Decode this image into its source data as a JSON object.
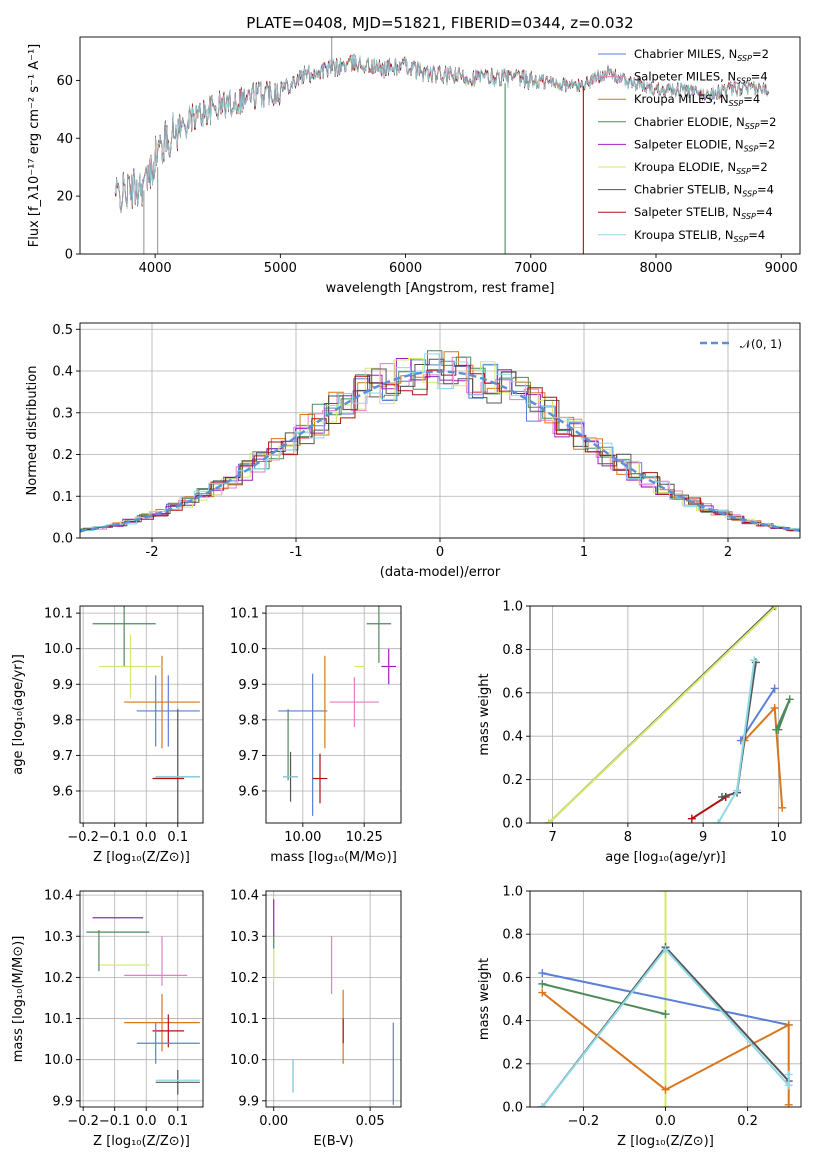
{
  "colors": {
    "Chabrier MILES": "#5a7fd6",
    "Salpeter MILES": "#e87cc8",
    "Kroupa MILES": "#d9751a",
    "Chabrier ELODIE": "#4e8a5c",
    "Salpeter ELODIE": "#a020c0",
    "Kroupa ELODIE": "#d6e86a",
    "Chabrier STELIB": "#555555",
    "Salpeter STELIB": "#b01010",
    "Kroupa STELIB": "#8ed8e8",
    "normal_curve": "#5b8fd6"
  },
  "chart_data": [
    {
      "id": "spectrum",
      "type": "line",
      "title": "PLATE=0408, MJD=51821, FIBERID=0344, z=0.032",
      "xlabel": "wavelength [Angstrom, rest frame]",
      "ylabel": "Flux [f_λ10⁻¹⁷ erg cm⁻² s⁻¹ A⁻¹]",
      "xlim": [
        3400,
        9150
      ],
      "ylim": [
        0,
        75
      ],
      "xticks": [
        4000,
        5000,
        6000,
        7000,
        8000,
        9000
      ],
      "yticks": [
        0,
        20,
        40,
        60
      ],
      "grid": false,
      "legend_position": "top-right",
      "series": [
        {
          "name": "Chabrier MILES, N_SSP=2",
          "legend_label": "Chabrier MILES, N",
          "legend_sub": "SSP",
          "legend_tail": "=2",
          "color_key": "Chabrier MILES"
        },
        {
          "name": "Salpeter MILES, N_SSP=4",
          "legend_label": "Salpeter MILES, N",
          "legend_sub": "SSP",
          "legend_tail": "=4",
          "color_key": "Salpeter MILES"
        },
        {
          "name": "Kroupa MILES, N_SSP=4",
          "legend_label": "Kroupa MILES, N",
          "legend_sub": "SSP",
          "legend_tail": "=4",
          "color_key": "Kroupa MILES"
        },
        {
          "name": "Chabrier ELODIE, N_SSP=2",
          "legend_label": "Chabrier ELODIE, N",
          "legend_sub": "SSP",
          "legend_tail": "=2",
          "color_key": "Chabrier ELODIE"
        },
        {
          "name": "Salpeter ELODIE, N_SSP=2",
          "legend_label": "Salpeter ELODIE, N",
          "legend_sub": "SSP",
          "legend_tail": "=2",
          "color_key": "Salpeter ELODIE"
        },
        {
          "name": "Kroupa ELODIE, N_SSP=2",
          "legend_label": "Kroupa ELODIE, N",
          "legend_sub": "SSP",
          "legend_tail": "=2",
          "color_key": "Kroupa ELODIE"
        },
        {
          "name": "Chabrier STELIB, N_SSP=4",
          "legend_label": "Chabrier STELIB, N",
          "legend_sub": "SSP",
          "legend_tail": "=4",
          "color_key": "Chabrier STELIB"
        },
        {
          "name": "Salpeter STELIB, N_SSP=4",
          "legend_label": "Salpeter STELIB, N",
          "legend_sub": "SSP",
          "legend_tail": "=4",
          "color_key": "Salpeter STELIB"
        },
        {
          "name": "Kroupa STELIB, N_SSP=4",
          "legend_label": "Kroupa STELIB, N",
          "legend_sub": "SSP",
          "legend_tail": "=4",
          "color_key": "Kroupa STELIB"
        }
      ],
      "continuum": {
        "x": [
          3680,
          3800,
          3900,
          3950,
          4000,
          4100,
          4300,
          4500,
          4800,
          5000,
          5200,
          5400,
          5600,
          5800,
          6000,
          6200,
          6500,
          6800,
          7000,
          7200,
          7400,
          7600,
          7800,
          8000,
          8200,
          8400,
          8600,
          8800,
          8900
        ],
        "y": [
          20,
          22,
          24,
          26,
          34,
          40,
          47,
          51,
          55,
          57,
          62,
          64,
          66,
          64,
          65,
          62,
          61,
          61,
          60,
          59,
          58,
          63,
          59,
          57,
          57,
          55,
          57,
          57,
          57
        ]
      },
      "dropouts": [
        {
          "x": 3910,
          "ymin": 0,
          "ymax": 22
        },
        {
          "x": 4020,
          "ymin": 0,
          "ymax": 30
        },
        {
          "x": 6795,
          "ymin": 0,
          "ymax": 59
        },
        {
          "x": 7420,
          "ymin": 0,
          "ymax": 58
        },
        {
          "x": 5410,
          "ymin": 64,
          "ymax": 76
        }
      ]
    },
    {
      "id": "residuals",
      "type": "line",
      "xlabel": "(data-model)/error",
      "ylabel": "Normed distribution",
      "xlim": [
        -2.5,
        2.5
      ],
      "ylim": [
        0,
        0.515
      ],
      "xticks": [
        -2,
        -1,
        0,
        1,
        2
      ],
      "yticks": [
        0.0,
        0.1,
        0.2,
        0.3,
        0.4,
        0.5
      ],
      "grid": true,
      "legend_position": "top-right",
      "legend_label": "𝒩(0, 1)",
      "bin_width": 0.1,
      "histogram_center_jitter_seed": 7
    },
    {
      "id": "age_vs_Z",
      "type": "scatter",
      "xlabel": "Z [log₁₀(Z/Z⊙)]",
      "ylabel": "age  [log₁₀(age/yr)]",
      "xlim": [
        -0.21,
        0.18
      ],
      "ylim": [
        9.51,
        10.12
      ],
      "xticks": [
        -0.2,
        -0.1,
        0.0,
        0.1
      ],
      "xtick_labels": [
        "−0.2",
        "−0.1",
        "0.0",
        "0.1"
      ],
      "yticks": [
        9.6,
        9.7,
        9.8,
        9.9,
        10.0,
        10.1
      ],
      "grid": true,
      "points": [
        {
          "color_key": "Chabrier MILES",
          "x": 0.07,
          "y": 9.825,
          "xerr": 0.1,
          "yerr": 0.1
        },
        {
          "color_key": "Chabrier MILES",
          "x": 0.03,
          "y": 9.825,
          "xerr": 0.0,
          "yerr": 0.1
        },
        {
          "color_key": "Kroupa MILES",
          "x": 0.05,
          "y": 9.85,
          "xerr": 0.12,
          "yerr": 0.13
        },
        {
          "color_key": "Chabrier ELODIE",
          "x": -0.07,
          "y": 10.07,
          "xerr": 0.1,
          "yerr": 0.12
        },
        {
          "color_key": "Kroupa ELODIE",
          "x": -0.05,
          "y": 9.95,
          "xerr": 0.1,
          "yerr": 0.09
        },
        {
          "color_key": "Chabrier STELIB",
          "x": 0.1,
          "y": 9.64,
          "xerr": 0.07,
          "yerr": 0.19
        },
        {
          "color_key": "Salpeter STELIB",
          "x": 0.07,
          "y": 9.635,
          "xerr": 0.05,
          "yerr": 0.0
        },
        {
          "color_key": "Kroupa STELIB",
          "x": 0.1,
          "y": 9.64,
          "xerr": 0.07,
          "yerr": 0.0
        }
      ]
    },
    {
      "id": "age_vs_mass",
      "type": "scatter",
      "xlabel": "mass [log₁₀(M/M⊙)]",
      "xlim": [
        9.85,
        10.4
      ],
      "ylim": [
        9.51,
        10.12
      ],
      "xticks": [
        10.0,
        10.25
      ],
      "xtick_labels": [
        "10.00",
        "10.25"
      ],
      "yticks": [
        9.6,
        9.7,
        9.8,
        9.9,
        10.0,
        10.1
      ],
      "grid": true,
      "points": [
        {
          "color_key": "Chabrier MILES",
          "x": 10.0,
          "y": 9.825,
          "xerr": 0.1,
          "yerr": 0.0
        },
        {
          "color_key": "Chabrier MILES",
          "x": 10.04,
          "y": 9.73,
          "xerr": 0.0,
          "yerr": 0.2
        },
        {
          "color_key": "Salpeter MILES",
          "x": 10.21,
          "y": 9.85,
          "xerr": 0.1,
          "yerr": 0.07
        },
        {
          "color_key": "Kroupa MILES",
          "x": 10.09,
          "y": 9.85,
          "xerr": 0.0,
          "yerr": 0.13
        },
        {
          "color_key": "Chabrier ELODIE",
          "x": 10.31,
          "y": 10.07,
          "xerr": 0.05,
          "yerr": 0.11
        },
        {
          "color_key": "Salpeter ELODIE",
          "x": 10.35,
          "y": 9.95,
          "xerr": 0.03,
          "yerr": 0.05
        },
        {
          "color_key": "Kroupa ELODIE",
          "x": 10.23,
          "y": 9.95,
          "xerr": 0.02,
          "yerr": 0.0
        },
        {
          "color_key": "Chabrier STELIB",
          "x": 9.95,
          "y": 9.64,
          "xerr": 0.03,
          "yerr": 0.07
        },
        {
          "color_key": "Chabrier ELODIE",
          "x": 9.94,
          "y": 9.73,
          "xerr": 0.0,
          "yerr": 0.1
        },
        {
          "color_key": "Salpeter STELIB",
          "x": 10.07,
          "y": 9.635,
          "xerr": 0.03,
          "yerr": 0.07
        },
        {
          "color_key": "Kroupa STELIB",
          "x": 9.95,
          "y": 9.64,
          "xerr": 0.03,
          "yerr": 0.0
        }
      ]
    },
    {
      "id": "mass_weight_vs_age",
      "type": "line",
      "xlabel": "age  [log₁₀(age/yr)]",
      "ylabel": "mass weight",
      "xlim": [
        6.7,
        10.3
      ],
      "ylim": [
        0.0,
        1.0
      ],
      "xticks": [
        7,
        8,
        9,
        10
      ],
      "yticks": [
        0.0,
        0.2,
        0.4,
        0.6,
        0.8,
        1.0
      ],
      "grid": true,
      "series": [
        {
          "color_key": "Chabrier STELIB",
          "x": [
            6.95,
            9.95
          ],
          "y": [
            0.0,
            1.0
          ]
        },
        {
          "color_key": "Kroupa ELODIE",
          "x": [
            6.95,
            9.97
          ],
          "y": [
            0.0,
            1.0
          ]
        },
        {
          "color_key": "Salpeter STELIB",
          "x": [
            8.85,
            9.3
          ],
          "y": [
            0.02,
            0.12
          ]
        },
        {
          "color_key": "Chabrier MILES",
          "x": [
            9.5,
            9.95
          ],
          "y": [
            0.38,
            0.62
          ]
        },
        {
          "color_key": "Kroupa MILES",
          "x": [
            9.55,
            9.95,
            10.05
          ],
          "y": [
            0.38,
            0.53,
            0.07
          ]
        },
        {
          "color_key": "Chabrier ELODIE",
          "x": [
            9.97,
            10.15,
            10.0
          ],
          "y": [
            0.43,
            0.57,
            0.43
          ]
        },
        {
          "color_key": "Chabrier STELIB",
          "x": [
            9.25,
            9.45,
            9.7
          ],
          "y": [
            0.12,
            0.14,
            0.74
          ]
        },
        {
          "color_key": "Kroupa STELIB",
          "x": [
            9.2,
            9.45,
            9.68
          ],
          "y": [
            0.0,
            0.15,
            0.75
          ]
        }
      ]
    },
    {
      "id": "mass_vs_Z",
      "type": "scatter",
      "xlabel": "Z [log₁₀(Z/Z⊙)]",
      "ylabel": "mass [log₁₀(M/M⊙)]",
      "xlim": [
        -0.21,
        0.18
      ],
      "ylim": [
        9.885,
        10.41
      ],
      "xticks": [
        -0.2,
        -0.1,
        0.0,
        0.1
      ],
      "xtick_labels": [
        "−0.2",
        "−0.1",
        "0.0",
        "0.1"
      ],
      "yticks": [
        9.9,
        10.0,
        10.1,
        10.2,
        10.3,
        10.4
      ],
      "grid": true,
      "points": [
        {
          "color_key": "Salpeter ELODIE",
          "x": -0.09,
          "y": 10.345,
          "xerr": 0.08,
          "yerr": 0.0
        },
        {
          "color_key": "Chabrier ELODIE",
          "x": -0.09,
          "y": 10.31,
          "xerr": 0.1,
          "yerr": 0.0
        },
        {
          "color_key": "Kroupa ELODIE",
          "x": -0.07,
          "y": 10.23,
          "xerr": 0.08,
          "yerr": 0.0
        },
        {
          "color_key": "Chabrier ELODIE",
          "x": -0.15,
          "y": 10.265,
          "xerr": 0.0,
          "yerr": 0.05
        },
        {
          "color_key": "Salpeter MILES",
          "x": 0.03,
          "y": 10.205,
          "xerr": 0.1,
          "yerr": 0.0
        },
        {
          "color_key": "Salpeter MILES",
          "x": 0.05,
          "y": 10.24,
          "xerr": 0.0,
          "yerr": 0.06
        },
        {
          "color_key": "Kroupa MILES",
          "x": 0.05,
          "y": 10.09,
          "xerr": 0.12,
          "yerr": 0.07
        },
        {
          "color_key": "Salpeter STELIB",
          "x": 0.07,
          "y": 10.07,
          "xerr": 0.05,
          "yerr": 0.04
        },
        {
          "color_key": "Chabrier MILES",
          "x": 0.07,
          "y": 10.04,
          "xerr": 0.1,
          "yerr": 0.0
        },
        {
          "color_key": "Chabrier MILES",
          "x": 0.03,
          "y": 10.04,
          "xerr": 0.0,
          "yerr": 0.05
        },
        {
          "color_key": "Chabrier STELIB",
          "x": 0.1,
          "y": 9.945,
          "xerr": 0.07,
          "yerr": 0.03
        },
        {
          "color_key": "Kroupa STELIB",
          "x": 0.1,
          "y": 9.95,
          "xerr": 0.07,
          "yerr": 0.0
        }
      ]
    },
    {
      "id": "mass_vs_ebv",
      "type": "scatter",
      "xlabel": "E(B-V)",
      "xlim": [
        -0.004,
        0.066
      ],
      "ylim": [
        9.885,
        10.41
      ],
      "xticks": [
        0.0,
        0.05
      ],
      "xtick_labels": [
        "0.00",
        "0.05"
      ],
      "yticks": [
        9.9,
        10.0,
        10.1,
        10.2,
        10.3,
        10.4
      ],
      "grid": true,
      "points": [
        {
          "color_key": "Salpeter ELODIE",
          "x": 0.0,
          "y": 10.345,
          "xerr": 0.0,
          "yerr": 0.045
        },
        {
          "color_key": "Chabrier ELODIE",
          "x": 0.0,
          "y": 10.29,
          "xerr": 0.0,
          "yerr": 0.02
        },
        {
          "color_key": "Kroupa ELODIE",
          "x": 0.0,
          "y": 10.23,
          "xerr": 0.0,
          "yerr": 0.04
        },
        {
          "color_key": "Salpeter MILES",
          "x": 0.03,
          "y": 10.23,
          "xerr": 0.0,
          "yerr": 0.07
        },
        {
          "color_key": "Kroupa MILES",
          "x": 0.036,
          "y": 10.08,
          "xerr": 0.0,
          "yerr": 0.09
        },
        {
          "color_key": "Salpeter STELIB",
          "x": 0.036,
          "y": 10.07,
          "xerr": 0.0,
          "yerr": 0.03
        },
        {
          "color_key": "Chabrier MILES",
          "x": 0.062,
          "y": 9.99,
          "xerr": 0.0,
          "yerr": 0.1
        },
        {
          "color_key": "Chabrier STELIB",
          "x": 0.01,
          "y": 9.96,
          "xerr": 0.0,
          "yerr": 0.04
        },
        {
          "color_key": "Kroupa STELIB",
          "x": 0.01,
          "y": 9.96,
          "xerr": 0.0,
          "yerr": 0.04
        }
      ]
    },
    {
      "id": "mass_weight_vs_Z",
      "type": "line",
      "xlabel": "Z [log₁₀(Z/Z⊙)]",
      "ylabel": "mass weight",
      "xlim": [
        -0.33,
        0.33
      ],
      "ylim": [
        0.0,
        1.0
      ],
      "xticks": [
        -0.2,
        0.0,
        0.2
      ],
      "xtick_labels": [
        "−0.2",
        "0.0",
        "0.2"
      ],
      "yticks": [
        0.0,
        0.2,
        0.4,
        0.6,
        0.8,
        1.0
      ],
      "grid": true,
      "series": [
        {
          "color_key": "Kroupa ELODIE",
          "x": [
            0.0,
            0.0
          ],
          "y": [
            0.0,
            1.0
          ]
        },
        {
          "color_key": "Chabrier MILES",
          "x": [
            -0.3,
            0.3
          ],
          "y": [
            0.62,
            0.38
          ]
        },
        {
          "color_key": "Chabrier ELODIE",
          "x": [
            -0.3,
            0.0
          ],
          "y": [
            0.57,
            0.43
          ]
        },
        {
          "color_key": "Kroupa MILES",
          "x": [
            -0.3,
            0.0,
            0.3,
            0.3
          ],
          "y": [
            0.53,
            0.08,
            0.38,
            0.01
          ]
        },
        {
          "color_key": "Chabrier STELIB",
          "x": [
            -0.3,
            0.0,
            0.3
          ],
          "y": [
            0.0,
            0.74,
            0.12
          ]
        },
        {
          "color_key": "Kroupa STELIB",
          "x": [
            -0.3,
            0.0,
            0.3,
            0.3
          ],
          "y": [
            0.0,
            0.73,
            0.1,
            0.15
          ]
        }
      ]
    }
  ]
}
